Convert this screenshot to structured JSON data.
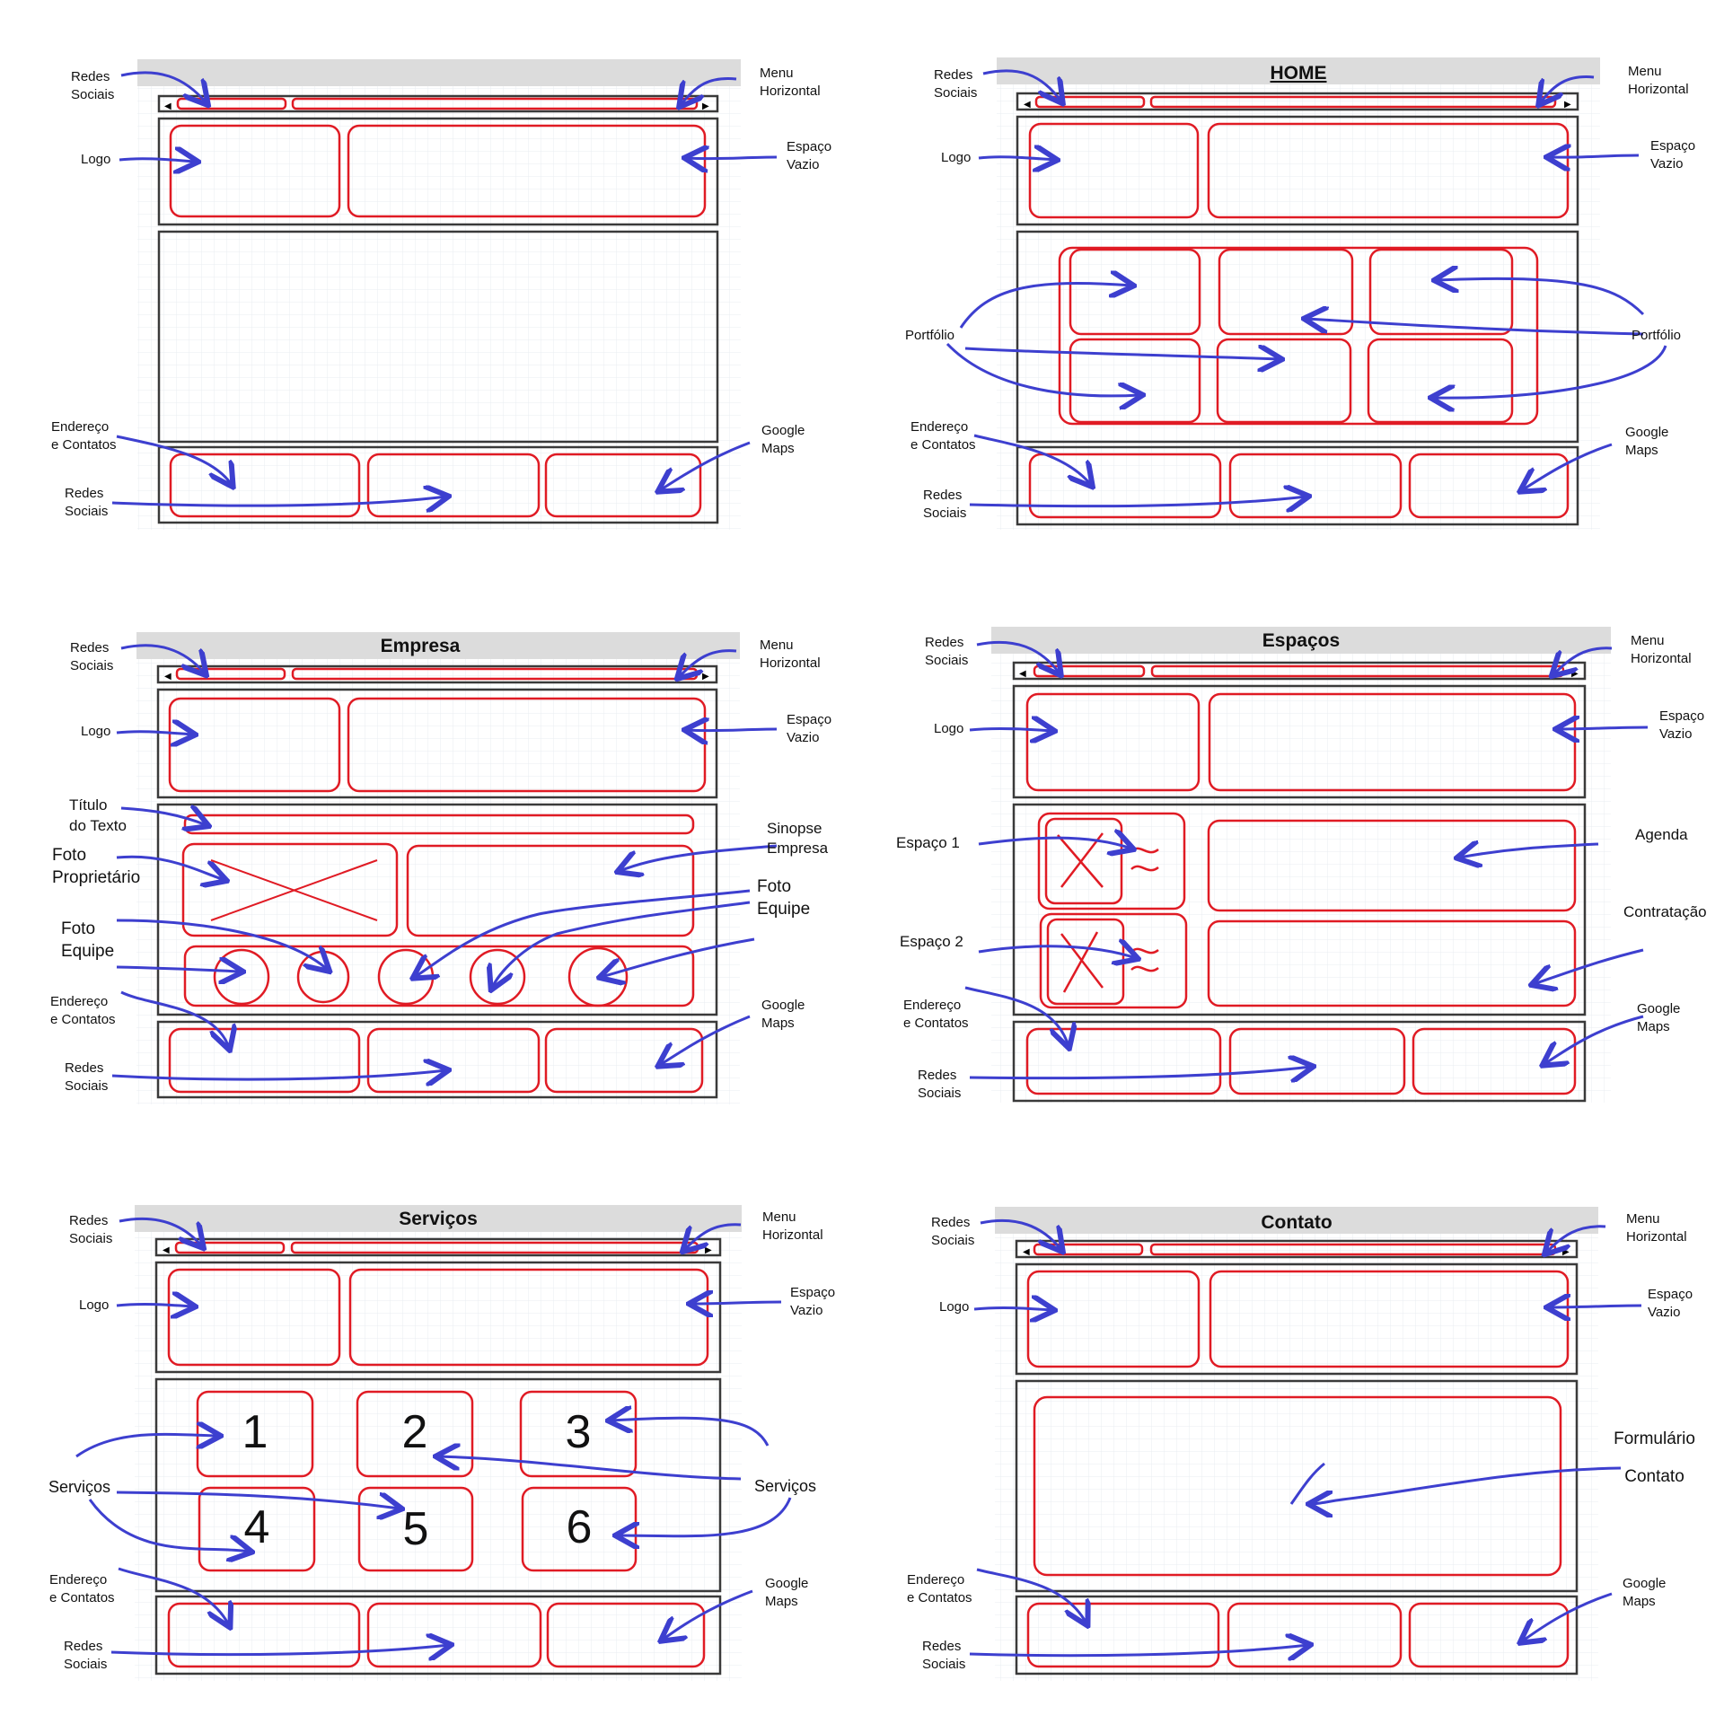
{
  "pages": {
    "blank": {
      "title": ""
    },
    "home": {
      "title": "HOME"
    },
    "empresa": {
      "title": "Empresa"
    },
    "espacos": {
      "title": "Espaços"
    },
    "servicos": {
      "title": "Serviços",
      "numbers": [
        "1",
        "2",
        "3",
        "4",
        "5",
        "6"
      ]
    },
    "contato": {
      "title": "Contato"
    }
  },
  "labels": {
    "redes_sociais_1": "Redes",
    "redes_sociais_2": "Sociais",
    "menu_1": "Menu",
    "menu_2": "Horizontal",
    "logo": "Logo",
    "espaco_vazio_1": "Espaço",
    "espaco_vazio_2": "Vazio",
    "endereco_1": "Endereço",
    "endereco_2": "e Contatos",
    "google_1": "Google",
    "google_2": "Maps",
    "portfolio": "Portfólio",
    "titulo_1": "Título",
    "titulo_2": "do Texto",
    "foto_prop_1": "Foto",
    "foto_prop_2": "Proprietário",
    "foto_equipe_1": "Foto",
    "foto_equipe_2": "Equipe",
    "sinopse_1": "Sinopse",
    "sinopse_2": "Empresa",
    "espaco1": "Espaço 1",
    "espaco2": "Espaço 2",
    "agenda": "Agenda",
    "contratacao": "Contratação",
    "servicos": "Serviços",
    "formulario": "Formulário",
    "contato": "Contato"
  },
  "colors": {
    "frame": "#3a3a3a",
    "red": "#e01b24",
    "blue": "#3d3fcf",
    "titlebar": "#dcdcdc",
    "grid": "#e9ecf2"
  }
}
